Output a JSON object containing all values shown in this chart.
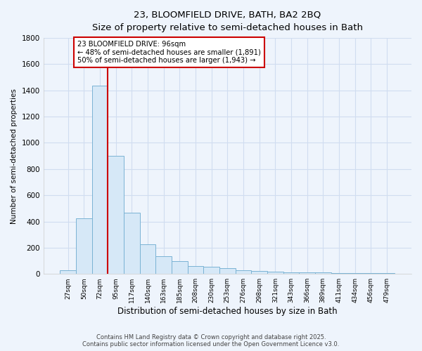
{
  "title_line1": "23, BLOOMFIELD DRIVE, BATH, BA2 2BQ",
  "title_line2": "Size of property relative to semi-detached houses in Bath",
  "xlabel": "Distribution of semi-detached houses by size in Bath",
  "ylabel": "Number of semi-detached properties",
  "categories": [
    "27sqm",
    "50sqm",
    "72sqm",
    "95sqm",
    "117sqm",
    "140sqm",
    "163sqm",
    "185sqm",
    "208sqm",
    "230sqm",
    "253sqm",
    "276sqm",
    "298sqm",
    "321sqm",
    "343sqm",
    "366sqm",
    "389sqm",
    "411sqm",
    "434sqm",
    "456sqm",
    "479sqm"
  ],
  "values": [
    30,
    425,
    1435,
    900,
    465,
    225,
    135,
    95,
    60,
    55,
    45,
    30,
    20,
    15,
    12,
    10,
    10,
    8,
    8,
    8,
    8
  ],
  "bar_color": "#d6e8f7",
  "bar_edge_color": "#7ab3d4",
  "red_line_index": 3,
  "annotation_title": "23 BLOOMFIELD DRIVE: 96sqm",
  "annotation_line1": "← 48% of semi-detached houses are smaller (1,891)",
  "annotation_line2": "50% of semi-detached houses are larger (1,943) →",
  "annotation_box_color": "#ffffff",
  "annotation_box_edge_color": "#cc0000",
  "ylim": [
    0,
    1800
  ],
  "yticks": [
    0,
    200,
    400,
    600,
    800,
    1000,
    1200,
    1400,
    1600,
    1800
  ],
  "background_color": "#eef4fc",
  "grid_color": "#d0ddf0",
  "footer_line1": "Contains HM Land Registry data © Crown copyright and database right 2025.",
  "footer_line2": "Contains public sector information licensed under the Open Government Licence v3.0."
}
